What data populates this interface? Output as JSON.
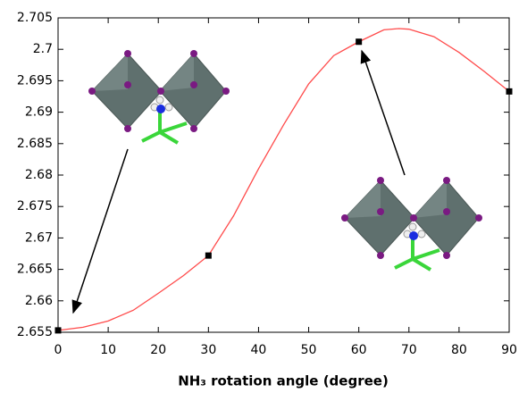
{
  "chart_data": {
    "type": "line",
    "xlabel": "NH₃ rotation angle (degree)",
    "xlim": [
      0,
      90
    ],
    "xticks": [
      0,
      10,
      20,
      30,
      40,
      50,
      60,
      70,
      80,
      90
    ],
    "ylim": [
      2.655,
      2.705
    ],
    "yticks": [
      2.655,
      2.66,
      2.665,
      2.67,
      2.675,
      2.68,
      2.685,
      2.69,
      2.695,
      2.7,
      2.705
    ],
    "grid": false,
    "series": [
      {
        "mode": "line",
        "color": "#ff4a4a",
        "x": [
          0,
          5,
          10,
          15,
          20,
          25,
          30,
          35,
          40,
          45,
          50,
          55,
          60,
          65,
          68,
          70,
          75,
          80,
          85,
          90
        ],
        "values": [
          2.6553,
          2.6558,
          2.6568,
          2.6585,
          2.6612,
          2.664,
          2.6672,
          2.6735,
          2.681,
          2.688,
          2.6945,
          2.699,
          2.7012,
          2.7031,
          2.7033,
          2.7032,
          2.702,
          2.6995,
          2.6965,
          2.6933
        ]
      },
      {
        "mode": "markers",
        "color": "#000000",
        "x": [
          0,
          30,
          60,
          90
        ],
        "values": [
          2.6553,
          2.6672,
          2.7012,
          2.6933
        ]
      }
    ]
  }
}
